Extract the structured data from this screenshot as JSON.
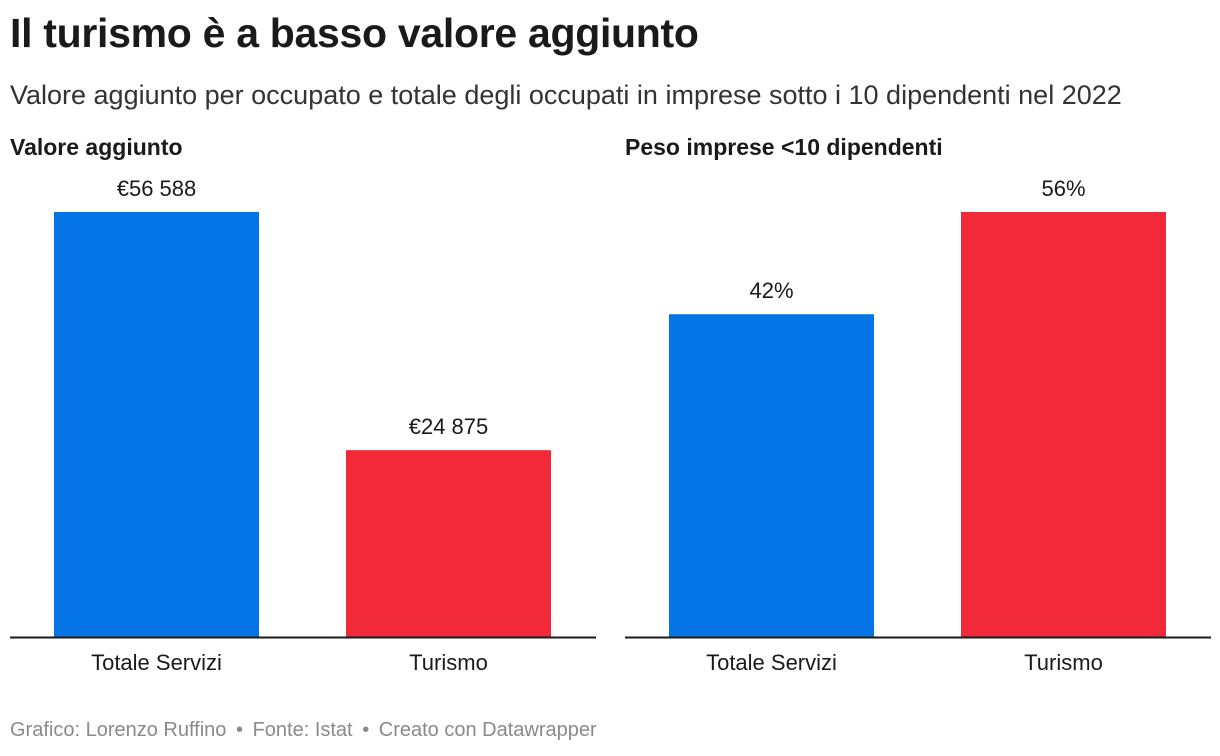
{
  "title": "Il turismo è a basso valore aggiunto",
  "subtitle": "Valore aggiunto per occupato e totale degli occupati in imprese sotto i 10 dipendenti nel 2022",
  "footer": {
    "credit": "Grafico: Lorenzo Ruffino",
    "source": "Fonte: Istat",
    "tool": "Creato con Datawrapper",
    "separator": "•"
  },
  "colors": {
    "blue": "#0575e6",
    "red": "#f12938",
    "axis": "#1a1a1a"
  },
  "chart_data": [
    {
      "type": "bar",
      "title": "Valore aggiunto",
      "categories": [
        "Totale Servizi",
        "Turismo"
      ],
      "values": [
        56588,
        24875
      ],
      "labels": [
        "€56 588",
        "€24 875"
      ],
      "colors": [
        "#0575e6",
        "#f12938"
      ],
      "ylim": [
        0,
        56588
      ],
      "grid": false
    },
    {
      "type": "bar",
      "title": "Peso imprese <10 dipendenti",
      "categories": [
        "Totale Servizi",
        "Turismo"
      ],
      "values": [
        42,
        56
      ],
      "labels": [
        "42%",
        "56%"
      ],
      "colors": [
        "#0575e6",
        "#f12938"
      ],
      "ylim": [
        0,
        55.3
      ],
      "grid": false
    }
  ]
}
